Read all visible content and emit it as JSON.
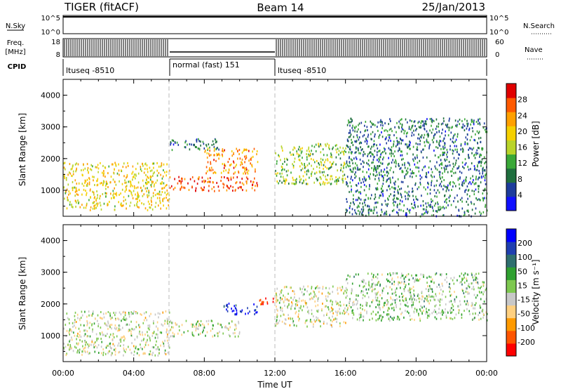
{
  "header": {
    "title": "TIGER (fitACF)",
    "beam": "Beam 14",
    "date": "25/Jan/2013"
  },
  "strip": {
    "nsky_label": "N.Sky",
    "nsky_ticks": [
      "10^5",
      "10^0"
    ],
    "nsearch_label": "N.Search",
    "nsearch_ticks": [
      "10^5",
      "10^0"
    ],
    "freq_label_line1": "Freq.",
    "freq_label_line2": "[MHz]",
    "freq_ticks": [
      "18",
      "8"
    ],
    "nave_label": "Nave",
    "nave_ticks": [
      "60",
      "0"
    ],
    "cpid_label": "CPID",
    "cpid_segments": [
      {
        "label": "ltuseq -8510",
        "start_h": 0,
        "end_h": 6
      },
      {
        "label": "normal (fast) 151",
        "start_h": 6,
        "end_h": 12
      },
      {
        "label": "ltuseq -8510",
        "start_h": 12,
        "end_h": 24
      }
    ]
  },
  "chart_data": [
    {
      "type": "heatmap",
      "title": "",
      "ylabel": "Slant Range [km]",
      "xlabel": "Time UT",
      "xlim": [
        0,
        24
      ],
      "ylim": [
        180,
        4500
      ],
      "yticks": [
        "1000",
        "2000",
        "3000",
        "4000"
      ],
      "xticks": [
        "00:00",
        "04:00",
        "08:00",
        "12:00",
        "16:00",
        "20:00",
        "00:00"
      ],
      "colorbar": {
        "label": "Power [dB]",
        "ticks": [
          "28",
          "24",
          "20",
          "16",
          "12",
          "8",
          "4"
        ],
        "range": [
          0,
          30
        ],
        "colors": [
          "#1010ff",
          "#1d3c9c",
          "#1f6e3e",
          "#3aa838",
          "#b9d42a",
          "#f5d000",
          "#ffa000",
          "#ff5a00",
          "#e00000"
        ]
      },
      "regions": [
        {
          "t": [
            0,
            6
          ],
          "r": [
            400,
            1900
          ],
          "value": 18
        },
        {
          "t": [
            6,
            11
          ],
          "r": [
            1000,
            1450
          ],
          "value": 26
        },
        {
          "t": [
            6,
            9
          ],
          "r": [
            2300,
            2650
          ],
          "value": 8
        },
        {
          "t": [
            8,
            11
          ],
          "r": [
            1550,
            2350
          ],
          "value": 22
        },
        {
          "t": [
            12,
            16
          ],
          "r": [
            1200,
            2500
          ],
          "value": 14
        },
        {
          "t": [
            16,
            24
          ],
          "r": [
            200,
            3300
          ],
          "value": 8
        }
      ]
    },
    {
      "type": "heatmap",
      "title": "",
      "ylabel": "Slant Range [km]",
      "xlabel": "Time UT",
      "xlim": [
        0,
        24
      ],
      "ylim": [
        180,
        4500
      ],
      "yticks": [
        "1000",
        "2000",
        "3000",
        "4000"
      ],
      "xticks": [
        "00:00",
        "04:00",
        "08:00",
        "12:00",
        "16:00",
        "20:00",
        "00:00"
      ],
      "colorbar": {
        "label": "Velocity [m s⁻¹]",
        "ticks": [
          "200",
          "100",
          "50",
          "15",
          "-15",
          "-50",
          "-100",
          "-200"
        ],
        "range": [
          -250,
          250
        ],
        "colors": [
          "#ff0000",
          "#ff5500",
          "#ff9a00",
          "#ffd080",
          "#c8c8c8",
          "#7ec850",
          "#2fa030",
          "#2f6f6f",
          "#1f3fb0",
          "#0000ff"
        ]
      },
      "regions": [
        {
          "t": [
            0,
            6
          ],
          "r": [
            400,
            1800
          ],
          "value": -20
        },
        {
          "t": [
            6,
            10
          ],
          "r": [
            1000,
            1500
          ],
          "value": 0
        },
        {
          "t": [
            9,
            11
          ],
          "r": [
            1700,
            2050
          ],
          "value": 220
        },
        {
          "t": [
            11,
            12
          ],
          "r": [
            2000,
            2250
          ],
          "value": -220
        },
        {
          "t": [
            12,
            16
          ],
          "r": [
            1300,
            2600
          ],
          "value": -30
        },
        {
          "t": [
            16,
            24
          ],
          "r": [
            1500,
            3000
          ],
          "value": 20
        }
      ]
    }
  ]
}
